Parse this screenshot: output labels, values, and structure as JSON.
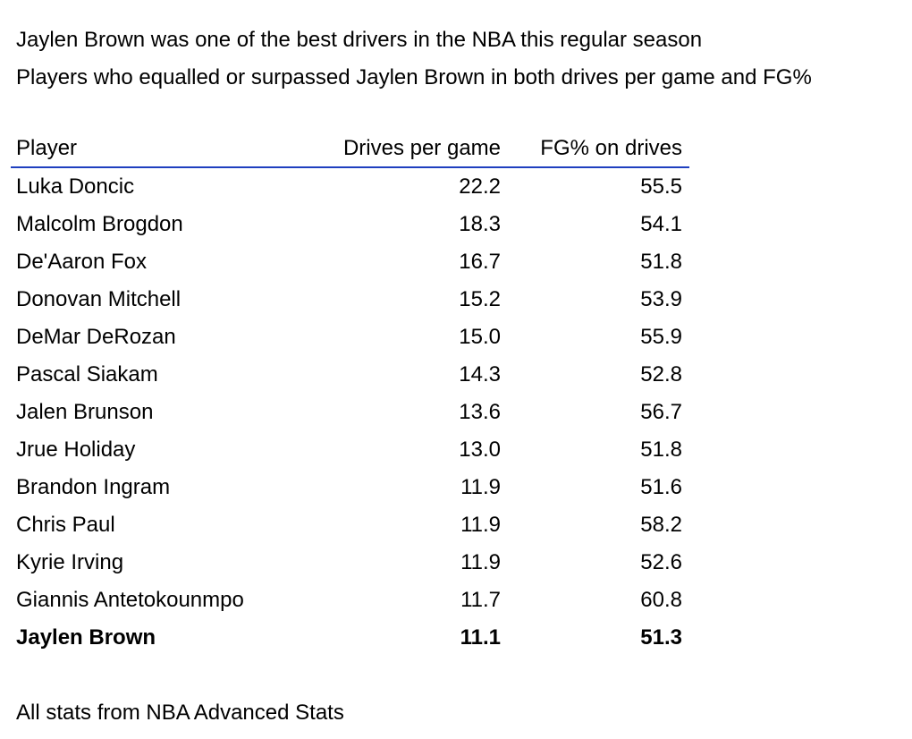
{
  "chart_data": {
    "type": "table",
    "title": "Jaylen Brown was one of the best drivers in the NBA this regular season",
    "subtitle": "Players who equalled or surpassed Jaylen Brown in both drives per game and FG%",
    "columns": [
      "Player",
      "Drives per game",
      "FG% on drives"
    ],
    "rows": [
      {
        "player": "Luka Doncic",
        "drives": "22.2",
        "fg": "55.5",
        "highlight": false
      },
      {
        "player": "Malcolm Brogdon",
        "drives": "18.3",
        "fg": "54.1",
        "highlight": false
      },
      {
        "player": "De'Aaron Fox",
        "drives": "16.7",
        "fg": "51.8",
        "highlight": false
      },
      {
        "player": "Donovan Mitchell",
        "drives": "15.2",
        "fg": "53.9",
        "highlight": false
      },
      {
        "player": "DeMar DeRozan",
        "drives": "15.0",
        "fg": "55.9",
        "highlight": false
      },
      {
        "player": "Pascal Siakam",
        "drives": "14.3",
        "fg": "52.8",
        "highlight": false
      },
      {
        "player": "Jalen Brunson",
        "drives": "13.6",
        "fg": "56.7",
        "highlight": false
      },
      {
        "player": "Jrue Holiday",
        "drives": "13.0",
        "fg": "51.8",
        "highlight": false
      },
      {
        "player": "Brandon Ingram",
        "drives": "11.9",
        "fg": "51.6",
        "highlight": false
      },
      {
        "player": "Chris Paul",
        "drives": "11.9",
        "fg": "58.2",
        "highlight": false
      },
      {
        "player": "Kyrie Irving",
        "drives": "11.9",
        "fg": "52.6",
        "highlight": false
      },
      {
        "player": "Giannis Antetokounmpo",
        "drives": "11.7",
        "fg": "60.8",
        "highlight": false
      },
      {
        "player": "Jaylen Brown",
        "drives": "11.1",
        "fg": "51.3",
        "highlight": true
      }
    ],
    "source": "All stats from NBA Advanced Stats",
    "header_rule_color": "#1f3fbf"
  }
}
